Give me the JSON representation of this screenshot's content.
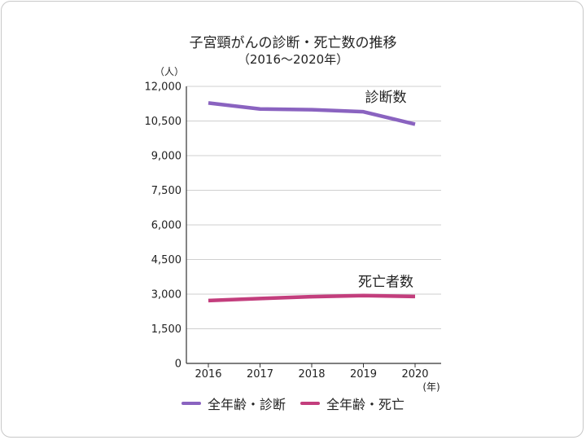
{
  "chart_data": {
    "type": "line",
    "title": "子宮頸がんの診断・死亡数の推移",
    "subtitle": "（2016～2020年）",
    "ylabel": "（人）",
    "xlabel": "(年)",
    "ylim": [
      0,
      12000
    ],
    "yticks": [
      0,
      1500,
      3000,
      4500,
      6000,
      7500,
      9000,
      10500,
      12000
    ],
    "ytick_labels": [
      "0",
      "1,500",
      "3,000",
      "4,500",
      "6,000",
      "7,500",
      "9,000",
      "10,500",
      "12,000"
    ],
    "categories": [
      "2016",
      "2017",
      "2018",
      "2019",
      "2020"
    ],
    "grid": true,
    "series": [
      {
        "name": "全年齢・診断",
        "label": "診断数",
        "color": "#8a63c0",
        "values": [
          11280,
          11020,
          10990,
          10900,
          10360
        ]
      },
      {
        "name": "全年齢・死亡",
        "label": "死亡者数",
        "color": "#c33e7d",
        "values": [
          2720,
          2810,
          2890,
          2940,
          2900
        ]
      }
    ]
  }
}
